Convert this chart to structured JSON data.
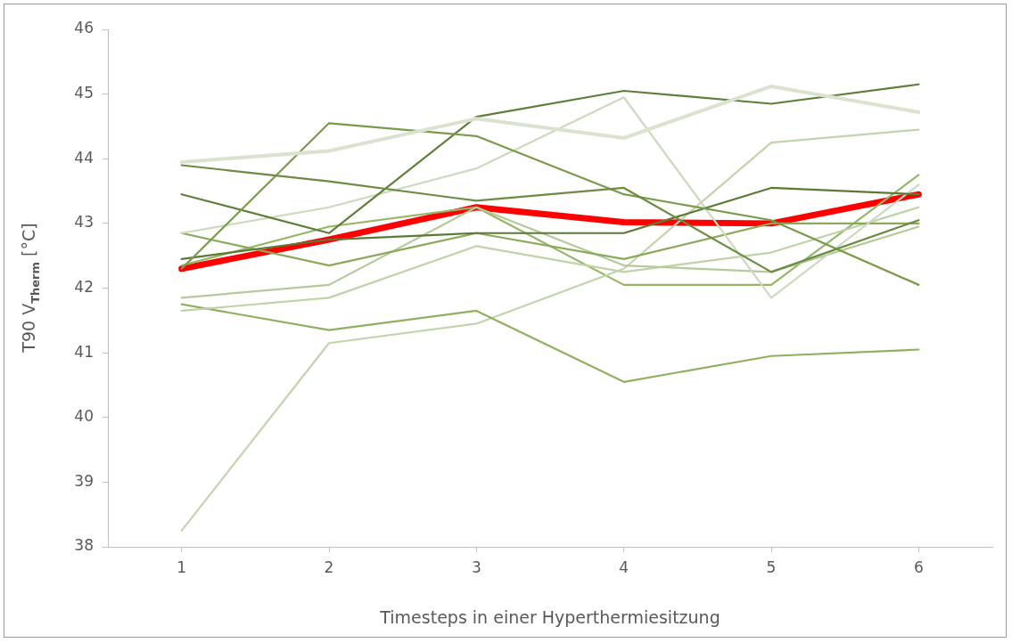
{
  "chart_data": {
    "type": "line",
    "xlabel": "Timesteps in einer Hyperthermiesitzung",
    "ylabel": "T90 V$_{Therm}$ [°C]",
    "categories": [
      "1",
      "2",
      "3",
      "4",
      "5",
      "6"
    ],
    "ylim": [
      38,
      46
    ],
    "yticks": [
      38,
      39,
      40,
      41,
      42,
      43,
      44,
      45,
      46
    ],
    "legend": false,
    "marker": "none",
    "series": [
      {
        "color": "#dbe3d0",
        "values": [
          43.95,
          44.12,
          44.62,
          44.32,
          45.12,
          44.72
        ]
      },
      {
        "color": "#6b8c42",
        "values": [
          43.9,
          43.65,
          43.35,
          43.55,
          42.25,
          43.05
        ]
      },
      {
        "color": "#7a9a4a",
        "values": [
          42.3,
          44.55,
          44.35,
          43.45,
          43.05,
          42.05
        ]
      },
      {
        "color": "#5e7f3a",
        "values": [
          43.45,
          42.85,
          44.65,
          45.05,
          44.85,
          45.15
        ]
      },
      {
        "color": "#5a7a36",
        "values": [
          42.45,
          42.75,
          42.85,
          42.85,
          43.55,
          43.45
        ]
      },
      {
        "color": "#cdd9bf",
        "values": [
          42.85,
          43.25,
          43.85,
          44.95,
          41.85,
          43.6
        ]
      },
      {
        "color": "#8aaa5a",
        "values": [
          42.85,
          42.35,
          42.85,
          42.45,
          43.0,
          43.0
        ]
      },
      {
        "color": "#b5c99a",
        "values": [
          41.85,
          42.05,
          43.25,
          42.35,
          42.25,
          42.95
        ]
      },
      {
        "color": "#c0d2a8",
        "values": [
          41.65,
          41.85,
          42.65,
          42.25,
          42.55,
          43.25
        ]
      },
      {
        "color": "#8fb060",
        "values": [
          41.75,
          41.35,
          41.65,
          40.55,
          40.95,
          41.05
        ]
      },
      {
        "color": "#c3d4ad",
        "values": [
          38.25,
          41.15,
          41.45,
          42.3,
          44.25,
          44.45
        ]
      },
      {
        "color": "#96b668",
        "values": [
          42.35,
          42.95,
          43.25,
          42.05,
          42.05,
          43.75
        ]
      },
      {
        "color": "#ff0000",
        "values": [
          42.3,
          42.75,
          43.25,
          43.02,
          43.0,
          43.45
        ]
      }
    ]
  }
}
